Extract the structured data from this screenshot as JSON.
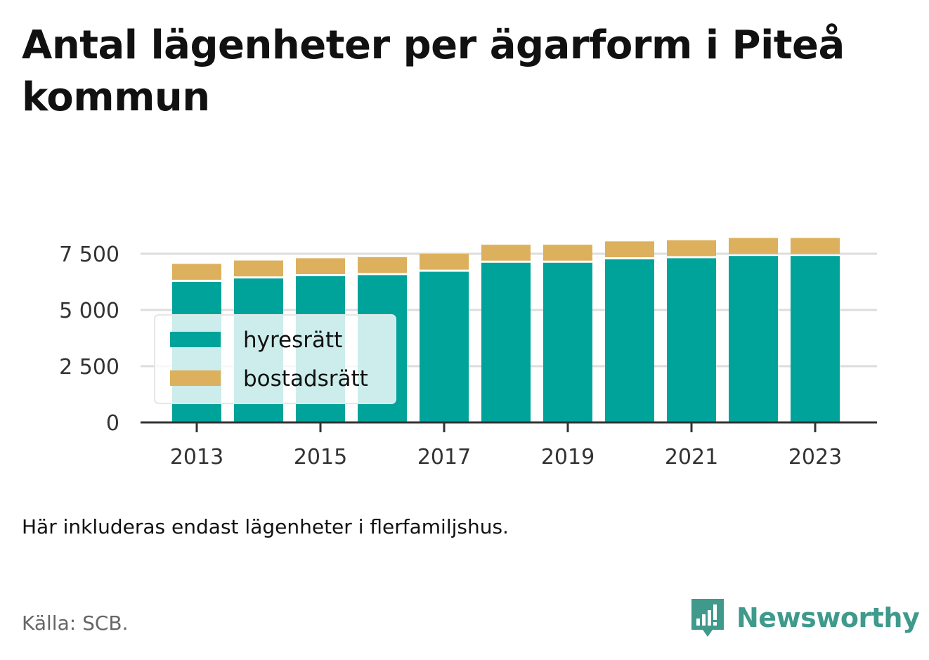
{
  "header": {
    "title": "Antal lägenheter per ägarform i Piteå kommun"
  },
  "footer": {
    "note": "Här inkluderas endast lägenheter i flerfamiljshus.",
    "source": "Källa: SCB.",
    "brand": "Newsworthy"
  },
  "colors": {
    "hyresratt": "#00a39a",
    "bostadsratt": "#dcb05c",
    "brand": "#3f9a8c",
    "grid": "#dddddd",
    "axis": "#333333"
  },
  "icons": {
    "brand_logo": "newsworthy-logo-icon"
  },
  "chart_data": {
    "type": "bar",
    "stacked": true,
    "categories": [
      "2013",
      "2014",
      "2015",
      "2016",
      "2017",
      "2018",
      "2019",
      "2020",
      "2021",
      "2022",
      "2023"
    ],
    "x_tick_labels": [
      "2013",
      "2015",
      "2017",
      "2019",
      "2021",
      "2023"
    ],
    "series": [
      {
        "name": "hyresrätt",
        "values": [
          6250,
          6400,
          6500,
          6550,
          6700,
          7100,
          7100,
          7250,
          7300,
          7400,
          7400
        ]
      },
      {
        "name": "bostadsrätt",
        "values": [
          800,
          800,
          800,
          800,
          800,
          800,
          800,
          800,
          800,
          800,
          800
        ]
      }
    ],
    "yticks": [
      0,
      2500,
      5000,
      7500
    ],
    "ytick_labels": [
      "0",
      "2 500",
      "5 000",
      "7 500"
    ],
    "ylim": [
      0,
      9000
    ],
    "grid": true,
    "legend_position": "bottom-left",
    "xlabel": "",
    "ylabel": ""
  }
}
